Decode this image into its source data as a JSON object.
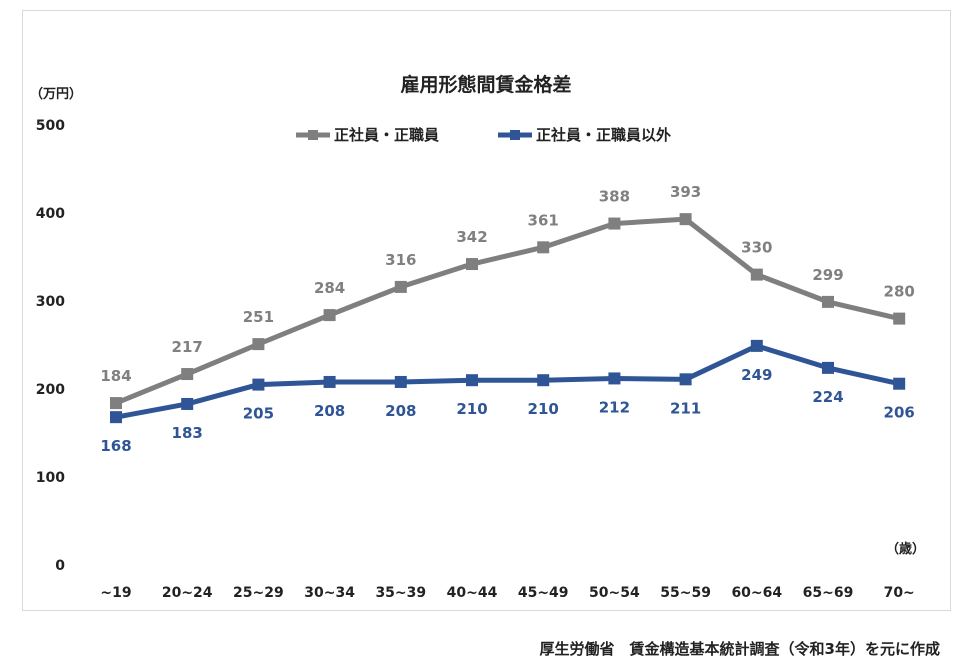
{
  "source_note": "厚生労働省　賃金構造基本統計調査（令和3年）を元に作成",
  "chart_data": {
    "type": "line",
    "title": "雇用形態間賃金格差",
    "ylabel": "（万円）",
    "xlabel": "（歳）",
    "ylim": [
      0,
      500
    ],
    "yticks": [
      0,
      100,
      200,
      300,
      400,
      500
    ],
    "grid": false,
    "legend_position": "top-center",
    "categories": [
      "~19",
      "20~24",
      "25~29",
      "30~34",
      "35~39",
      "40~44",
      "45~49",
      "50~54",
      "55~59",
      "60~64",
      "65~69",
      "70~"
    ],
    "series": [
      {
        "name": "正社員・正職員",
        "color": "#7f7f7f",
        "label_color": "#808080",
        "label_position": "above",
        "values": [
          184,
          217,
          251,
          284,
          316,
          342,
          361,
          388,
          393,
          330,
          299,
          280
        ]
      },
      {
        "name": "正社員・正職員以外",
        "color": "#2f5596",
        "label_color": "#2f5596",
        "label_position": "below",
        "values": [
          168,
          183,
          205,
          208,
          208,
          210,
          210,
          212,
          211,
          249,
          224,
          206
        ]
      }
    ]
  }
}
